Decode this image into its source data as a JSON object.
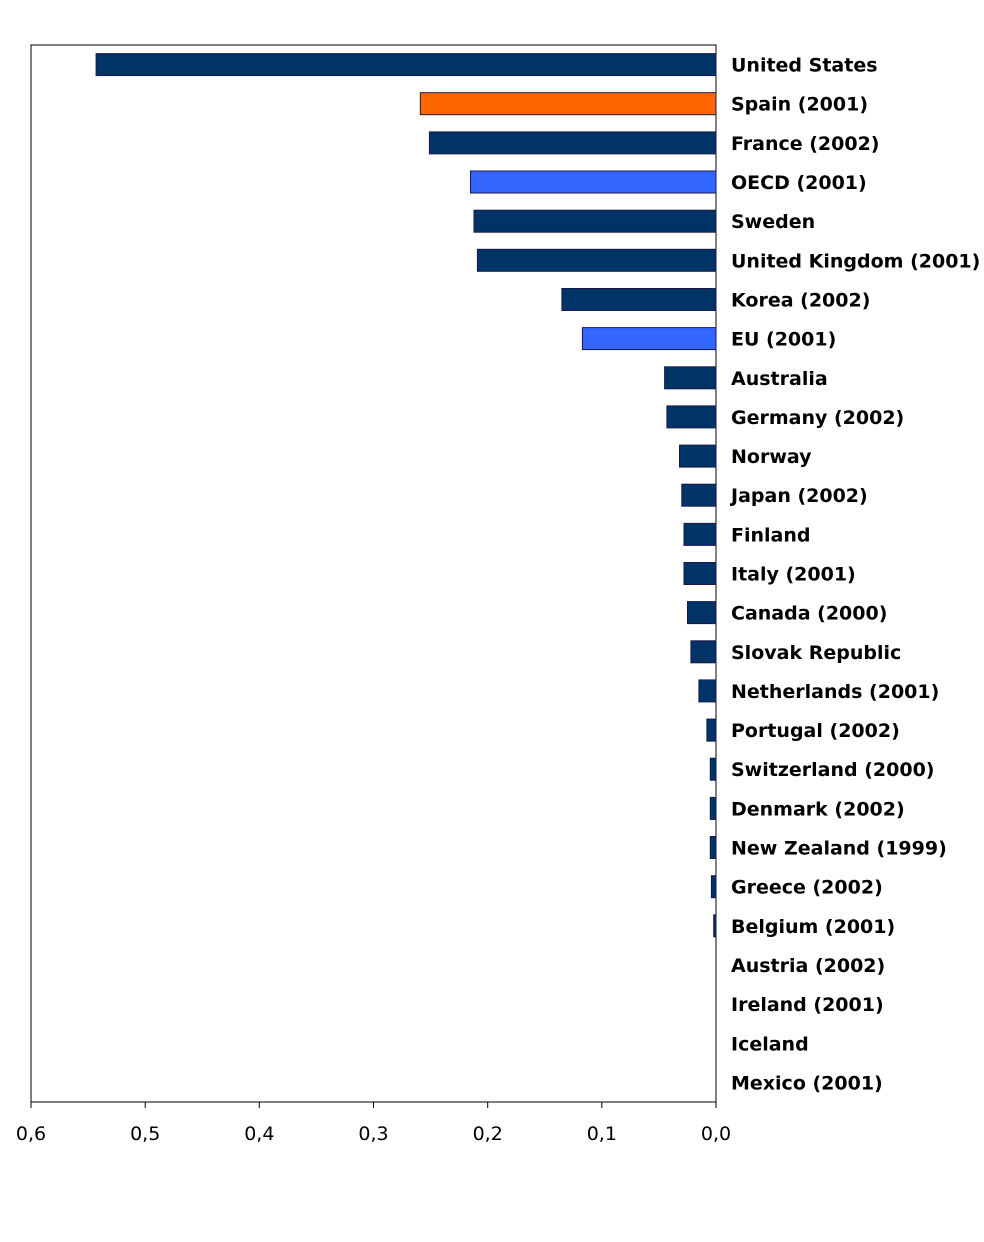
{
  "chart_data": {
    "type": "bar",
    "orientation": "horizontal",
    "x_axis_reversed": true,
    "title": "",
    "xlabel": "",
    "ylabel": "",
    "xlim": [
      0,
      0.6
    ],
    "x_ticks": [
      "0,6",
      "0,5",
      "0,4",
      "0,3",
      "0,2",
      "0,1",
      "0,0"
    ],
    "x_tick_values": [
      0.6,
      0.5,
      0.4,
      0.3,
      0.2,
      0.1,
      0.0
    ],
    "grid": false,
    "legend": "none",
    "colors": {
      "default": "#003366",
      "highlight": "#FF6600",
      "aggregate": "#3366FF"
    },
    "categories": [
      "United States",
      "Spain (2001)",
      "France (2002)",
      "OECD (2001)",
      "Sweden",
      "United Kingdom (2001)",
      "Korea (2002)",
      "EU (2001)",
      "Australia",
      "Germany (2002)",
      "Norway",
      "Japan (2002)",
      "Finland",
      "Italy (2001)",
      "Canada (2000)",
      "Slovak Republic",
      "Netherlands (2001)",
      "Portugal (2002)",
      "Switzerland (2000)",
      "Denmark (2002)",
      "New Zealand (1999)",
      "Greece (2002)",
      "Belgium (2001)",
      "Austria (2002)",
      "Ireland (2001)",
      "Iceland",
      "Mexico (2001)"
    ],
    "values": [
      0.543,
      0.259,
      0.251,
      0.215,
      0.212,
      0.209,
      0.135,
      0.117,
      0.045,
      0.043,
      0.032,
      0.03,
      0.028,
      0.028,
      0.025,
      0.022,
      0.015,
      0.008,
      0.005,
      0.005,
      0.005,
      0.004,
      0.002,
      0.0,
      0.0,
      0.0,
      0.0
    ],
    "bar_colors": [
      "default",
      "highlight",
      "default",
      "aggregate",
      "default",
      "default",
      "default",
      "aggregate",
      "default",
      "default",
      "default",
      "default",
      "default",
      "default",
      "default",
      "default",
      "default",
      "default",
      "default",
      "default",
      "default",
      "default",
      "default",
      "default",
      "default",
      "default",
      "default"
    ]
  }
}
